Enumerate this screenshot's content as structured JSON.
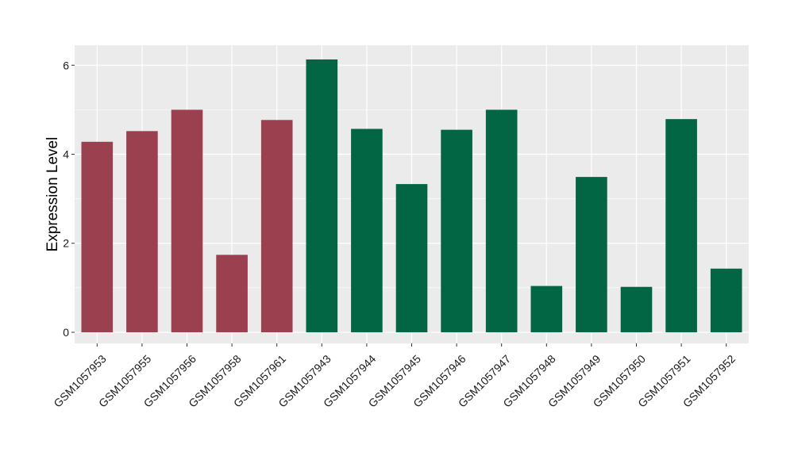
{
  "chart_data": {
    "type": "bar",
    "title": "",
    "xlabel": "",
    "ylabel": "Expression Level",
    "ylim": [
      -0.25,
      6.45
    ],
    "yticks": [
      0,
      2,
      4,
      6
    ],
    "grid": true,
    "categories": [
      "GSM1057953",
      "GSM1057955",
      "GSM1057956",
      "GSM1057958",
      "GSM1057961",
      "GSM1057943",
      "GSM1057944",
      "GSM1057945",
      "GSM1057946",
      "GSM1057947",
      "GSM1057948",
      "GSM1057949",
      "GSM1057950",
      "GSM1057951",
      "GSM1057952"
    ],
    "values": [
      4.28,
      4.52,
      5.0,
      1.74,
      4.77,
      6.13,
      4.57,
      3.33,
      4.55,
      5.0,
      1.04,
      3.49,
      1.02,
      4.79,
      1.43
    ],
    "groups": [
      "a",
      "a",
      "a",
      "a",
      "a",
      "b",
      "b",
      "b",
      "b",
      "b",
      "b",
      "b",
      "b",
      "b",
      "b"
    ],
    "group_colors": {
      "a": "#9b404f",
      "b": "#026644"
    },
    "panel_background": "#ebebeb",
    "gridline_color": "#ffffff"
  }
}
